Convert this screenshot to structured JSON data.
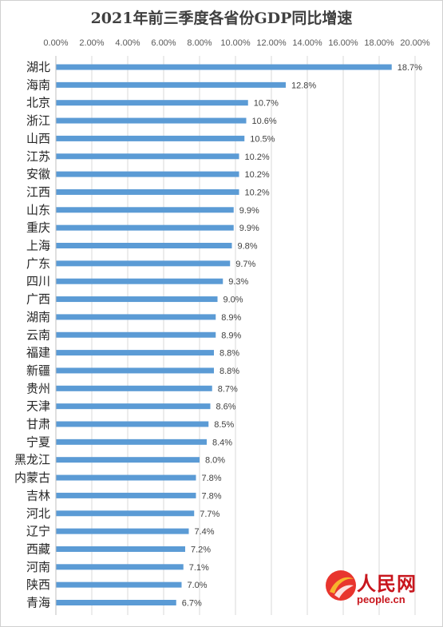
{
  "title": "2021年前三季度各省份GDP同比增速",
  "logo": {
    "name": "人民网",
    "url": "people.cn"
  },
  "colors": {
    "bar": "#5b9bd5",
    "grid": "#d9d9d9",
    "logo": "#c8161d"
  },
  "chart_data": {
    "type": "bar",
    "orientation": "horizontal",
    "title": "2021年前三季度各省份GDP同比增速",
    "xlim": [
      0,
      20
    ],
    "xticks": [
      "0.00%",
      "2.00%",
      "4.00%",
      "6.00%",
      "8.00%",
      "10.00%",
      "12.00%",
      "14.00%",
      "16.00%",
      "18.00%",
      "20.00%"
    ],
    "axis_position": "top",
    "grid": true,
    "categories": [
      "湖北",
      "海南",
      "北京",
      "浙江",
      "山西",
      "江苏",
      "安徽",
      "江西",
      "山东",
      "重庆",
      "上海",
      "广东",
      "四川",
      "广西",
      "湖南",
      "云南",
      "福建",
      "新疆",
      "贵州",
      "天津",
      "甘肃",
      "宁夏",
      "黑龙江",
      "内蒙古",
      "吉林",
      "河北",
      "辽宁",
      "西藏",
      "河南",
      "陕西",
      "青海"
    ],
    "values": [
      18.7,
      12.8,
      10.7,
      10.6,
      10.5,
      10.2,
      10.2,
      10.2,
      9.9,
      9.9,
      9.8,
      9.7,
      9.3,
      9.0,
      8.9,
      8.9,
      8.8,
      8.8,
      8.7,
      8.6,
      8.5,
      8.4,
      8.0,
      7.8,
      7.8,
      7.7,
      7.4,
      7.2,
      7.1,
      7.0,
      6.7
    ],
    "labels": [
      "18.7%",
      "12.8%",
      "10.7%",
      "10.6%",
      "10.5%",
      "10.2%",
      "10.2%",
      "10.2%",
      "9.9%",
      "9.9%",
      "9.8%",
      "9.7%",
      "9.3%",
      "9.0%",
      "8.9%",
      "8.9%",
      "8.8%",
      "8.8%",
      "8.7%",
      "8.6%",
      "8.5%",
      "8.4%",
      "8.0%",
      "7.8%",
      "7.8%",
      "7.7%",
      "7.4%",
      "7.2%",
      "7.1%",
      "7.0%",
      "6.7%"
    ]
  }
}
